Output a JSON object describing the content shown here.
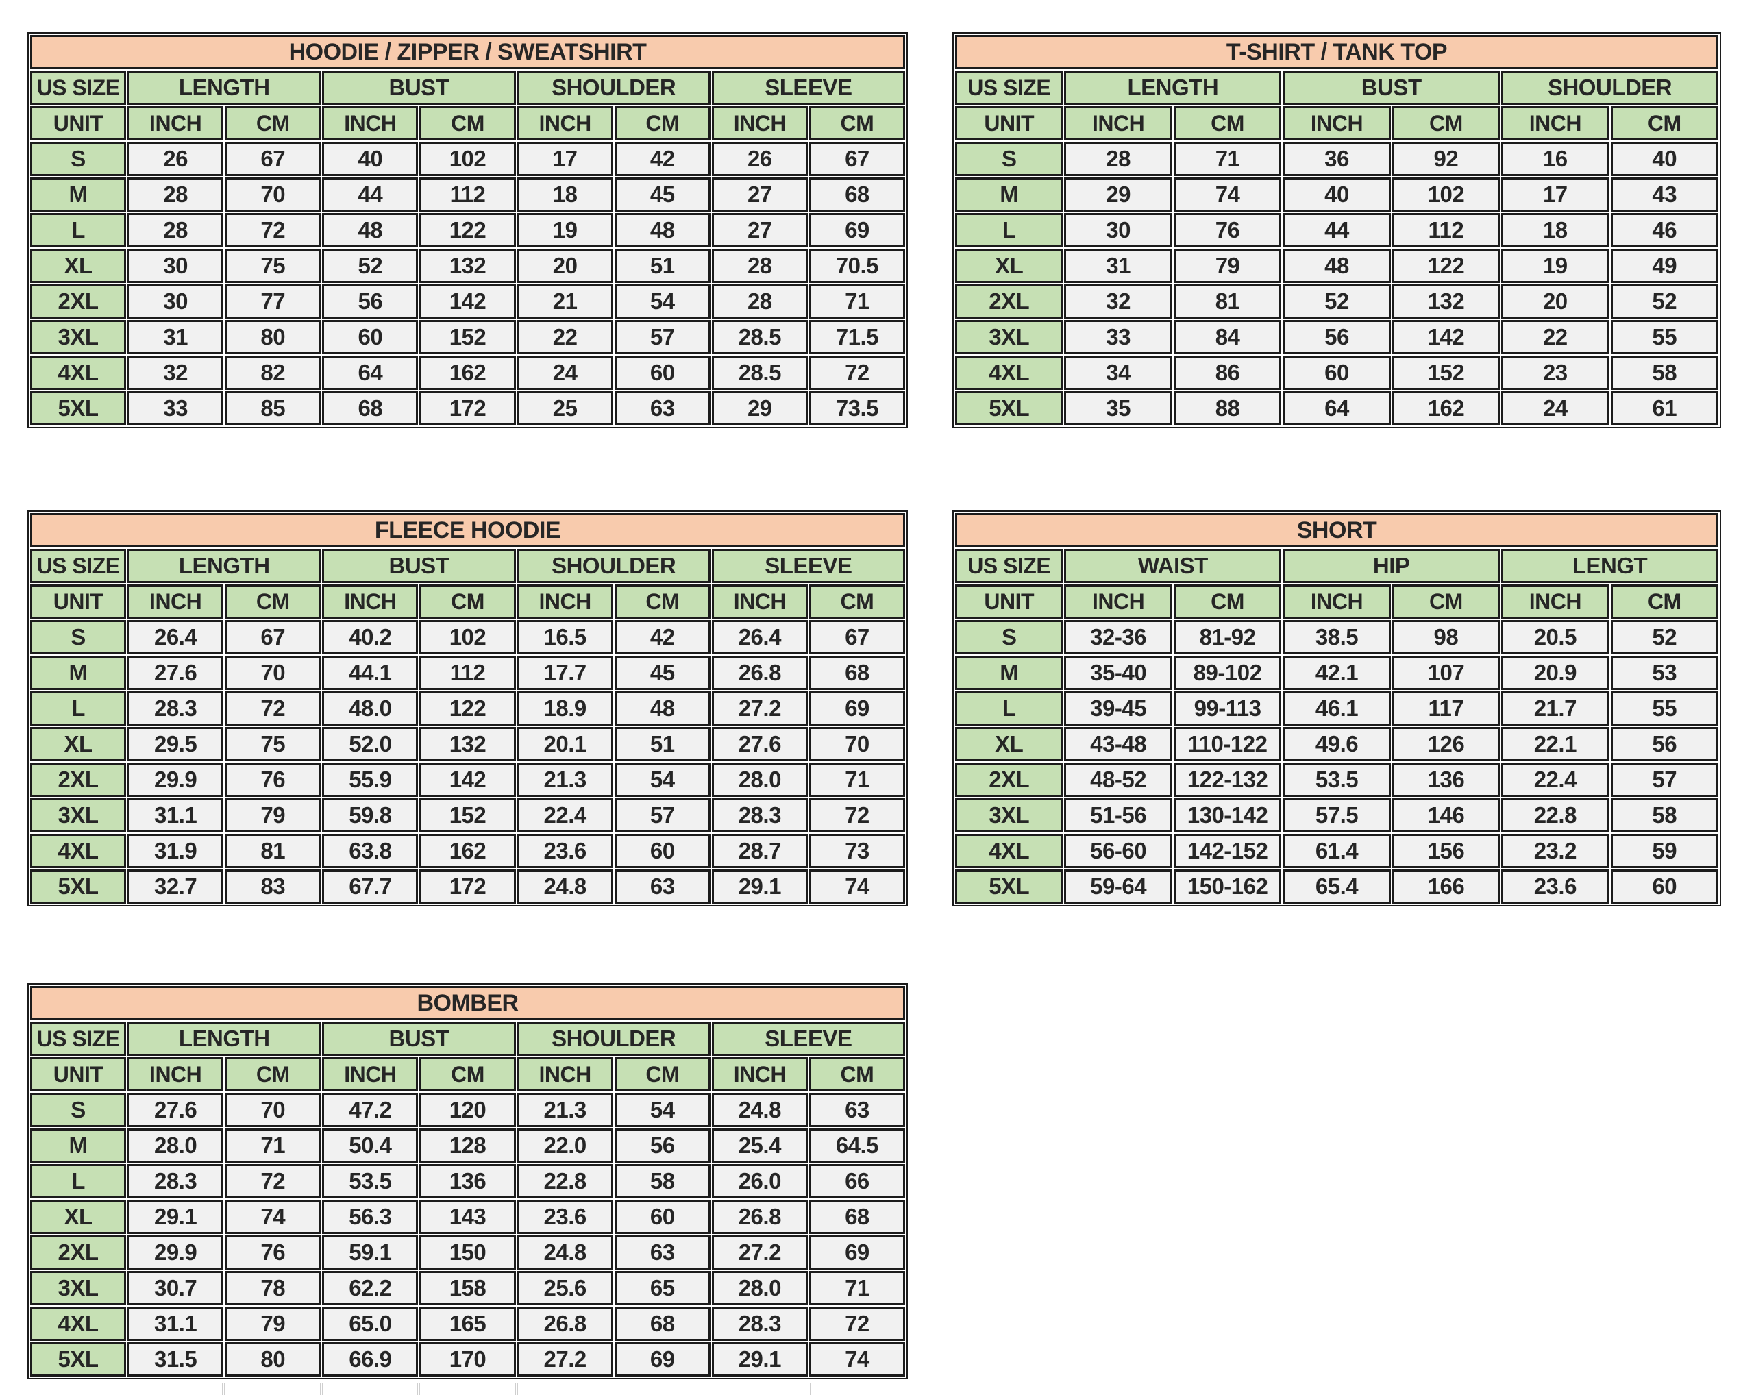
{
  "theme": {
    "title_bg": "#f8cbad",
    "header_bg": "#c6e0b4",
    "data_bg": "#f1f1f1",
    "border_color": "#1c1c1c",
    "text_color": "#262626",
    "page_bg": "#ffffff"
  },
  "tables": [
    {
      "id": "hoodie",
      "title": "HOODIE / ZIPPER / SWEATSHIRT",
      "corner_label": "US SIZE",
      "unit_label": "UNIT",
      "groups": [
        "LENGTH",
        "BUST",
        "SHOULDER",
        "SLEEVE"
      ],
      "unit_headers": [
        "INCH",
        "CM",
        "INCH",
        "CM",
        "INCH",
        "CM",
        "INCH",
        "CM"
      ],
      "rows": [
        {
          "size": "S",
          "values": [
            "26",
            "67",
            "40",
            "102",
            "17",
            "42",
            "26",
            "67"
          ]
        },
        {
          "size": "M",
          "values": [
            "28",
            "70",
            "44",
            "112",
            "18",
            "45",
            "27",
            "68"
          ]
        },
        {
          "size": "L",
          "values": [
            "28",
            "72",
            "48",
            "122",
            "19",
            "48",
            "27",
            "69"
          ]
        },
        {
          "size": "XL",
          "values": [
            "30",
            "75",
            "52",
            "132",
            "20",
            "51",
            "28",
            "70.5"
          ]
        },
        {
          "size": "2XL",
          "values": [
            "30",
            "77",
            "56",
            "142",
            "21",
            "54",
            "28",
            "71"
          ]
        },
        {
          "size": "3XL",
          "values": [
            "31",
            "80",
            "60",
            "152",
            "22",
            "57",
            "28.5",
            "71.5"
          ]
        },
        {
          "size": "4XL",
          "values": [
            "32",
            "82",
            "64",
            "162",
            "24",
            "60",
            "28.5",
            "72"
          ]
        },
        {
          "size": "5XL",
          "values": [
            "33",
            "85",
            "68",
            "172",
            "25",
            "63",
            "29",
            "73.5"
          ]
        }
      ]
    },
    {
      "id": "tshirt",
      "title": "T-SHIRT / TANK TOP",
      "corner_label": "US SIZE",
      "unit_label": "UNIT",
      "groups": [
        "LENGTH",
        "BUST",
        "SHOULDER"
      ],
      "unit_headers": [
        "INCH",
        "CM",
        "INCH",
        "CM",
        "INCH",
        "CM"
      ],
      "rows": [
        {
          "size": "S",
          "values": [
            "28",
            "71",
            "36",
            "92",
            "16",
            "40"
          ]
        },
        {
          "size": "M",
          "values": [
            "29",
            "74",
            "40",
            "102",
            "17",
            "43"
          ]
        },
        {
          "size": "L",
          "values": [
            "30",
            "76",
            "44",
            "112",
            "18",
            "46"
          ]
        },
        {
          "size": "XL",
          "values": [
            "31",
            "79",
            "48",
            "122",
            "19",
            "49"
          ]
        },
        {
          "size": "2XL",
          "values": [
            "32",
            "81",
            "52",
            "132",
            "20",
            "52"
          ]
        },
        {
          "size": "3XL",
          "values": [
            "33",
            "84",
            "56",
            "142",
            "22",
            "55"
          ]
        },
        {
          "size": "4XL",
          "values": [
            "34",
            "86",
            "60",
            "152",
            "23",
            "58"
          ]
        },
        {
          "size": "5XL",
          "values": [
            "35",
            "88",
            "64",
            "162",
            "24",
            "61"
          ]
        }
      ]
    },
    {
      "id": "fleece",
      "title": "FLEECE HOODIE",
      "corner_label": "US SIZE",
      "unit_label": "UNIT",
      "groups": [
        "LENGTH",
        "BUST",
        "SHOULDER",
        "SLEEVE"
      ],
      "unit_headers": [
        "INCH",
        "CM",
        "INCH",
        "CM",
        "INCH",
        "CM",
        "INCH",
        "CM"
      ],
      "rows": [
        {
          "size": "S",
          "values": [
            "26.4",
            "67",
            "40.2",
            "102",
            "16.5",
            "42",
            "26.4",
            "67"
          ]
        },
        {
          "size": "M",
          "values": [
            "27.6",
            "70",
            "44.1",
            "112",
            "17.7",
            "45",
            "26.8",
            "68"
          ]
        },
        {
          "size": "L",
          "values": [
            "28.3",
            "72",
            "48.0",
            "122",
            "18.9",
            "48",
            "27.2",
            "69"
          ]
        },
        {
          "size": "XL",
          "values": [
            "29.5",
            "75",
            "52.0",
            "132",
            "20.1",
            "51",
            "27.6",
            "70"
          ]
        },
        {
          "size": "2XL",
          "values": [
            "29.9",
            "76",
            "55.9",
            "142",
            "21.3",
            "54",
            "28.0",
            "71"
          ]
        },
        {
          "size": "3XL",
          "values": [
            "31.1",
            "79",
            "59.8",
            "152",
            "22.4",
            "57",
            "28.3",
            "72"
          ]
        },
        {
          "size": "4XL",
          "values": [
            "31.9",
            "81",
            "63.8",
            "162",
            "23.6",
            "60",
            "28.7",
            "73"
          ]
        },
        {
          "size": "5XL",
          "values": [
            "32.7",
            "83",
            "67.7",
            "172",
            "24.8",
            "63",
            "29.1",
            "74"
          ]
        }
      ]
    },
    {
      "id": "short",
      "title": "SHORT",
      "corner_label": "US SIZE",
      "unit_label": "UNIT",
      "groups": [
        "WAIST",
        "HIP",
        "LENGT"
      ],
      "unit_headers": [
        "INCH",
        "CM",
        "INCH",
        "CM",
        "INCH",
        "CM"
      ],
      "rows": [
        {
          "size": "S",
          "values": [
            "32-36",
            "81-92",
            "38.5",
            "98",
            "20.5",
            "52"
          ]
        },
        {
          "size": "M",
          "values": [
            "35-40",
            "89-102",
            "42.1",
            "107",
            "20.9",
            "53"
          ]
        },
        {
          "size": "L",
          "values": [
            "39-45",
            "99-113",
            "46.1",
            "117",
            "21.7",
            "55"
          ]
        },
        {
          "size": "XL",
          "values": [
            "43-48",
            "110-122",
            "49.6",
            "126",
            "22.1",
            "56"
          ]
        },
        {
          "size": "2XL",
          "values": [
            "48-52",
            "122-132",
            "53.5",
            "136",
            "22.4",
            "57"
          ]
        },
        {
          "size": "3XL",
          "values": [
            "51-56",
            "130-142",
            "57.5",
            "146",
            "22.8",
            "58"
          ]
        },
        {
          "size": "4XL",
          "values": [
            "56-60",
            "142-152",
            "61.4",
            "156",
            "23.2",
            "59"
          ]
        },
        {
          "size": "5XL",
          "values": [
            "59-64",
            "150-162",
            "65.4",
            "166",
            "23.6",
            "60"
          ]
        }
      ]
    },
    {
      "id": "bomber",
      "title": "BOMBER",
      "corner_label": "US SIZE",
      "unit_label": "UNIT",
      "groups": [
        "LENGTH",
        "BUST",
        "SHOULDER",
        "SLEEVE"
      ],
      "unit_headers": [
        "INCH",
        "CM",
        "INCH",
        "CM",
        "INCH",
        "CM",
        "INCH",
        "CM"
      ],
      "rows": [
        {
          "size": "S",
          "values": [
            "27.6",
            "70",
            "47.2",
            "120",
            "21.3",
            "54",
            "24.8",
            "63"
          ]
        },
        {
          "size": "M",
          "values": [
            "28.0",
            "71",
            "50.4",
            "128",
            "22.0",
            "56",
            "25.4",
            "64.5"
          ]
        },
        {
          "size": "L",
          "values": [
            "28.3",
            "72",
            "53.5",
            "136",
            "22.8",
            "58",
            "26.0",
            "66"
          ]
        },
        {
          "size": "XL",
          "values": [
            "29.1",
            "74",
            "56.3",
            "143",
            "23.6",
            "60",
            "26.8",
            "68"
          ]
        },
        {
          "size": "2XL",
          "values": [
            "29.9",
            "76",
            "59.1",
            "150",
            "24.8",
            "63",
            "27.2",
            "69"
          ]
        },
        {
          "size": "3XL",
          "values": [
            "30.7",
            "78",
            "62.2",
            "158",
            "25.6",
            "65",
            "28.0",
            "71"
          ]
        },
        {
          "size": "4XL",
          "values": [
            "31.1",
            "79",
            "65.0",
            "165",
            "26.8",
            "68",
            "28.3",
            "72"
          ]
        },
        {
          "size": "5XL",
          "values": [
            "31.5",
            "80",
            "66.9",
            "170",
            "27.2",
            "69",
            "29.1",
            "74"
          ]
        }
      ]
    }
  ],
  "ghost_row": {
    "columns": 9
  }
}
